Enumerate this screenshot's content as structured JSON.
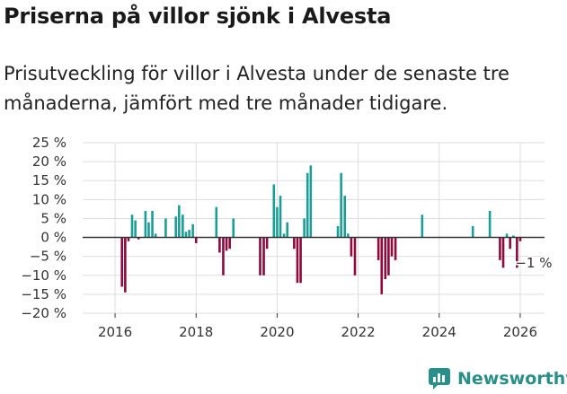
{
  "title": "Priserna på villor sjönk i Alvesta",
  "subtitle": "Prisutveckling för villor i Alvesta under de senaste tre månaderna, jämfört med tre månader tidigare.",
  "brand": "Newsworthy",
  "colors": {
    "positive": "#1a9e96",
    "negative": "#8c0a3c",
    "grid": "#dddddd",
    "axis": "#333333",
    "text": "#333333"
  },
  "chart_data": {
    "type": "bar",
    "title": "Priserna på villor sjönk i Alvesta",
    "xlabel": "",
    "ylabel": "",
    "ylim": [
      -20,
      25
    ],
    "yticks": [
      25,
      20,
      15,
      10,
      5,
      0,
      -5,
      -10,
      -15,
      -20
    ],
    "ytick_labels": [
      "25 %",
      "20 %",
      "15 %",
      "10 %",
      "5 %",
      "0 %",
      "−5 %",
      "−10 %",
      "−15 %",
      "−20 %"
    ],
    "xlim": [
      2015.2,
      2026.6
    ],
    "xticks": [
      2016,
      2018,
      2020,
      2022,
      2024,
      2026
    ],
    "xtick_labels": [
      "2016",
      "2018",
      "2020",
      "2022",
      "2024",
      "2026"
    ],
    "annotation": {
      "x": 2025.92,
      "value": -1,
      "text": "−1 %"
    },
    "points": [
      [
        2016.17,
        -13
      ],
      [
        2016.25,
        -14.5
      ],
      [
        2016.33,
        -1
      ],
      [
        2016.42,
        6
      ],
      [
        2016.5,
        4.5
      ],
      [
        2016.58,
        -0.5
      ],
      [
        2016.75,
        7
      ],
      [
        2016.83,
        4
      ],
      [
        2016.92,
        7
      ],
      [
        2017.0,
        1
      ],
      [
        2017.25,
        5
      ],
      [
        2017.5,
        5.5
      ],
      [
        2017.58,
        8.5
      ],
      [
        2017.67,
        6
      ],
      [
        2017.75,
        1.5
      ],
      [
        2017.83,
        2
      ],
      [
        2017.92,
        3.5
      ],
      [
        2018.0,
        -1.5
      ],
      [
        2018.5,
        8
      ],
      [
        2018.58,
        -4
      ],
      [
        2018.67,
        -10
      ],
      [
        2018.75,
        -3.5
      ],
      [
        2018.83,
        -3
      ],
      [
        2018.92,
        5
      ],
      [
        2019.58,
        -10
      ],
      [
        2019.67,
        -10
      ],
      [
        2019.75,
        -3
      ],
      [
        2019.92,
        14
      ],
      [
        2020.0,
        8
      ],
      [
        2020.08,
        11
      ],
      [
        2020.17,
        1
      ],
      [
        2020.25,
        4
      ],
      [
        2020.42,
        -3
      ],
      [
        2020.5,
        -12
      ],
      [
        2020.58,
        -12
      ],
      [
        2020.67,
        5
      ],
      [
        2020.75,
        17
      ],
      [
        2020.83,
        19
      ],
      [
        2021.5,
        3
      ],
      [
        2021.58,
        17
      ],
      [
        2021.67,
        11
      ],
      [
        2021.75,
        1
      ],
      [
        2021.83,
        -5
      ],
      [
        2021.92,
        -10
      ],
      [
        2022.5,
        -6
      ],
      [
        2022.58,
        -15
      ],
      [
        2022.67,
        -11
      ],
      [
        2022.75,
        -10
      ],
      [
        2022.83,
        -5
      ],
      [
        2022.92,
        -6
      ],
      [
        2023.58,
        6
      ],
      [
        2024.83,
        3
      ],
      [
        2025.25,
        7
      ],
      [
        2025.5,
        -6
      ],
      [
        2025.58,
        -8
      ],
      [
        2025.67,
        1
      ],
      [
        2025.75,
        -3
      ],
      [
        2025.83,
        0.5
      ],
      [
        2025.92,
        -8
      ],
      [
        2026.0,
        -1
      ]
    ]
  }
}
